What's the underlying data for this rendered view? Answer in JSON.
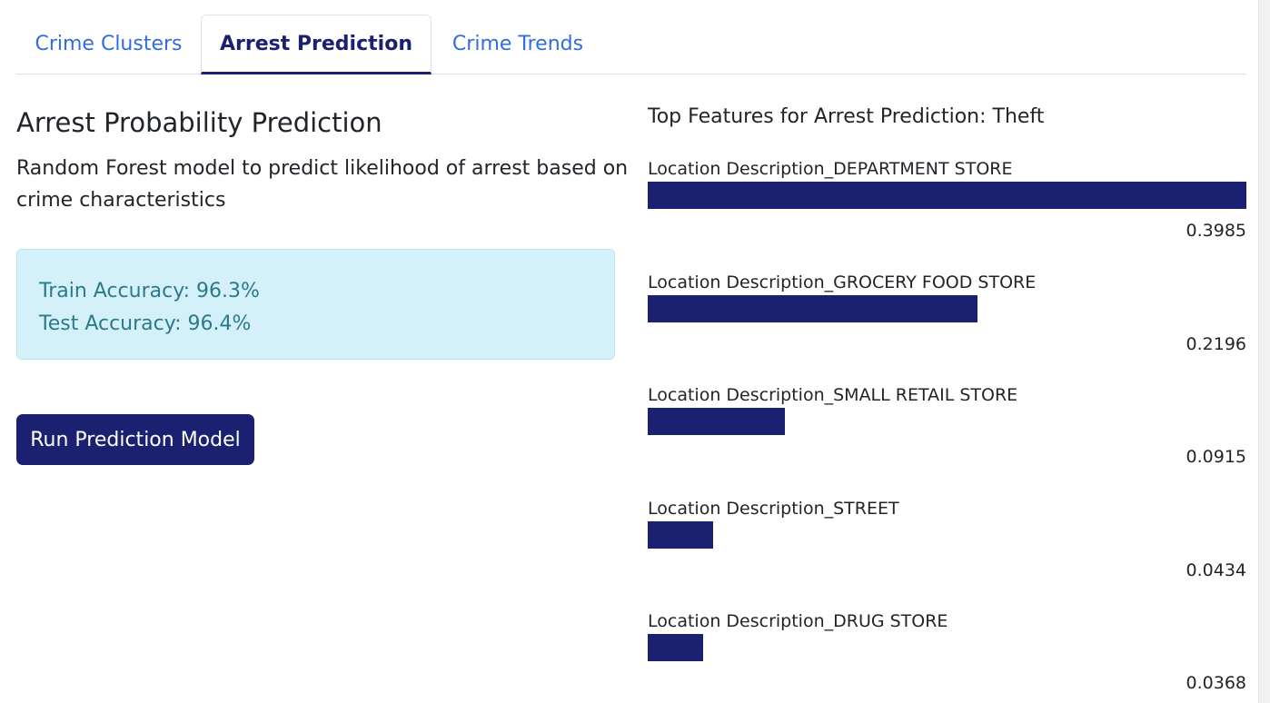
{
  "tabs": [
    {
      "label": "Crime Clusters"
    },
    {
      "label": "Arrest Prediction"
    },
    {
      "label": "Crime Trends"
    }
  ],
  "left": {
    "title": "Arrest Probability Prediction",
    "description": "Random Forest model to predict likelihood of arrest based on crime characteristics",
    "train_accuracy": "Train Accuracy: 96.3%",
    "test_accuracy": "Test Accuracy: 96.4%",
    "run_button": "Run Prediction Model"
  },
  "chart_data": {
    "type": "bar",
    "title": "Top Features for Arrest Prediction: Theft",
    "categories": [
      "Location Description_DEPARTMENT STORE",
      "Location Description_GROCERY FOOD STORE",
      "Location Description_SMALL RETAIL STORE",
      "Location Description_STREET",
      "Location Description_DRUG STORE"
    ],
    "values": [
      0.3985,
      0.2196,
      0.0915,
      0.0434,
      0.0368
    ],
    "value_labels": [
      "0.3985",
      "0.2196",
      "0.0915",
      "0.0434",
      "0.0368"
    ],
    "bar_color": "#1b2170"
  },
  "colors": {
    "accent": "#1b2170",
    "link": "#2f6de0",
    "info_bg": "#d4f1f9",
    "info_text": "#2b7a8a"
  }
}
